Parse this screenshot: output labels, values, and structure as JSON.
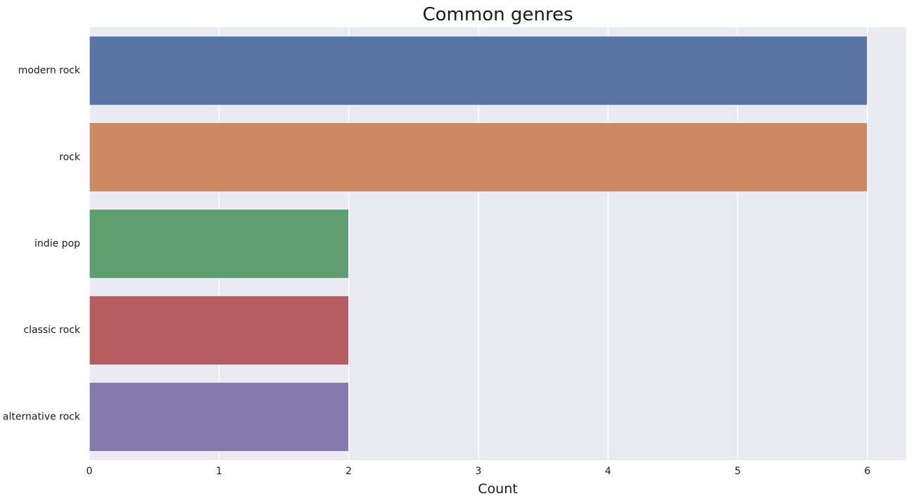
{
  "chart_data": {
    "type": "bar",
    "orientation": "horizontal",
    "title": "Common genres",
    "xlabel": "Count",
    "ylabel": "",
    "categories": [
      "modern rock",
      "rock",
      "indie pop",
      "classic rock",
      "alternative rock"
    ],
    "values": [
      6,
      6,
      2,
      2,
      2
    ],
    "colors": [
      "#5975a4",
      "#cc8963",
      "#5f9e6e",
      "#b55d60",
      "#857aab"
    ],
    "xlim": [
      0,
      6.3
    ],
    "xticks": [
      0,
      1,
      2,
      3,
      4,
      5,
      6
    ],
    "grid": true,
    "legend": "none",
    "style": {
      "background": "#eaeaf2",
      "grid_color": "#ffffff"
    }
  }
}
